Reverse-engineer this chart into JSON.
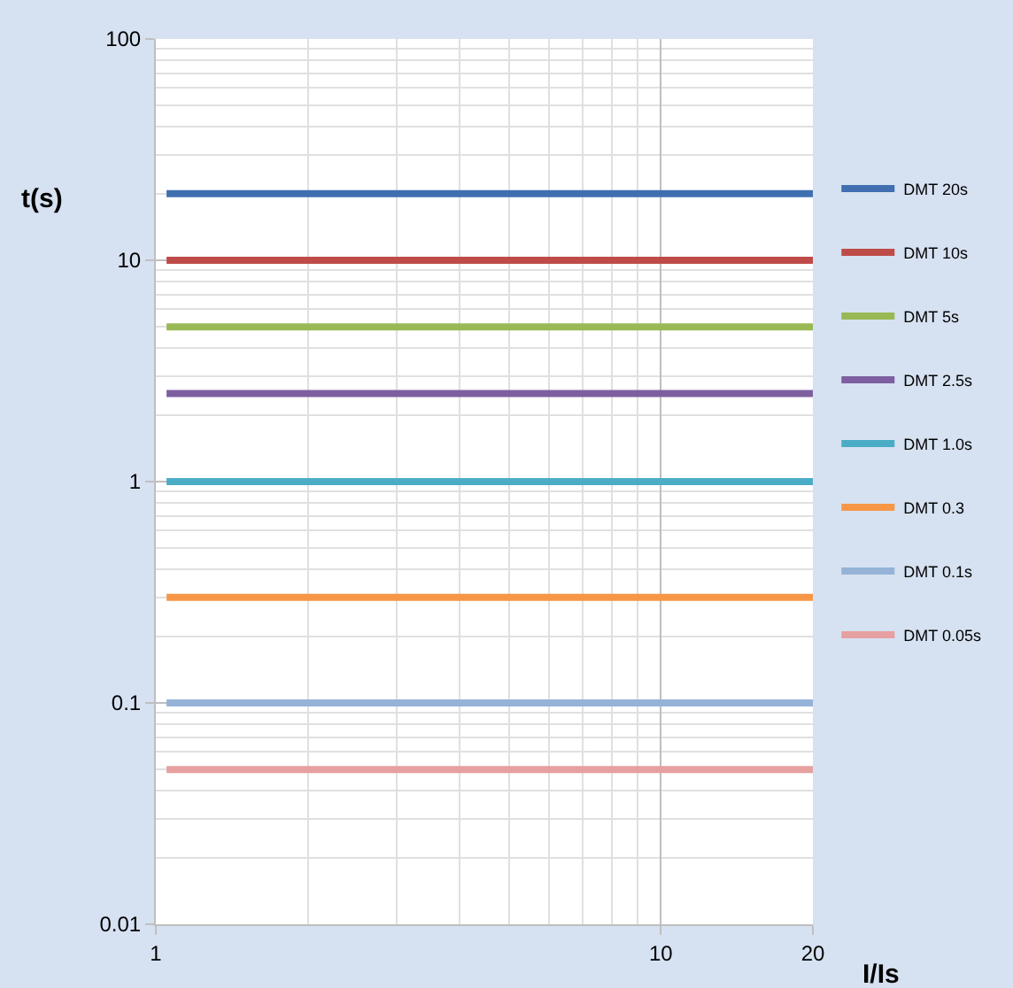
{
  "chart_data": {
    "type": "line",
    "xlabel": "I/Is",
    "ylabel": "t(s)",
    "x": [
      1.05,
      20
    ],
    "series": [
      {
        "name": "DMT 20s",
        "color": "#3f6fb0",
        "values": [
          20,
          20
        ]
      },
      {
        "name": "DMT 10s",
        "color": "#be4b48",
        "values": [
          10,
          10
        ]
      },
      {
        "name": "DMT 5s",
        "color": "#98b954",
        "values": [
          5,
          5
        ]
      },
      {
        "name": "DMT 2.5s",
        "color": "#7d5fa0",
        "values": [
          2.5,
          2.5
        ]
      },
      {
        "name": "DMT 1.0s",
        "color": "#4bacc6",
        "values": [
          1,
          1
        ]
      },
      {
        "name": "DMT 0.3",
        "color": "#f79646",
        "values": [
          0.3,
          0.3
        ]
      },
      {
        "name": "DMT 0.1s",
        "color": "#95b3d7",
        "values": [
          0.1,
          0.1
        ]
      },
      {
        "name": "DMT 0.05s",
        "color": "#e6a0a0",
        "values": [
          0.05,
          0.05
        ]
      }
    ],
    "log": "xy",
    "xlim": [
      1,
      20
    ],
    "ylim": [
      0.01,
      100
    ],
    "xticks": [
      1,
      10,
      20
    ],
    "yticks": [
      0.01,
      0.1,
      1,
      10,
      100
    ],
    "grid": true,
    "legend": "right",
    "marker": "none",
    "line_style": "solid"
  }
}
